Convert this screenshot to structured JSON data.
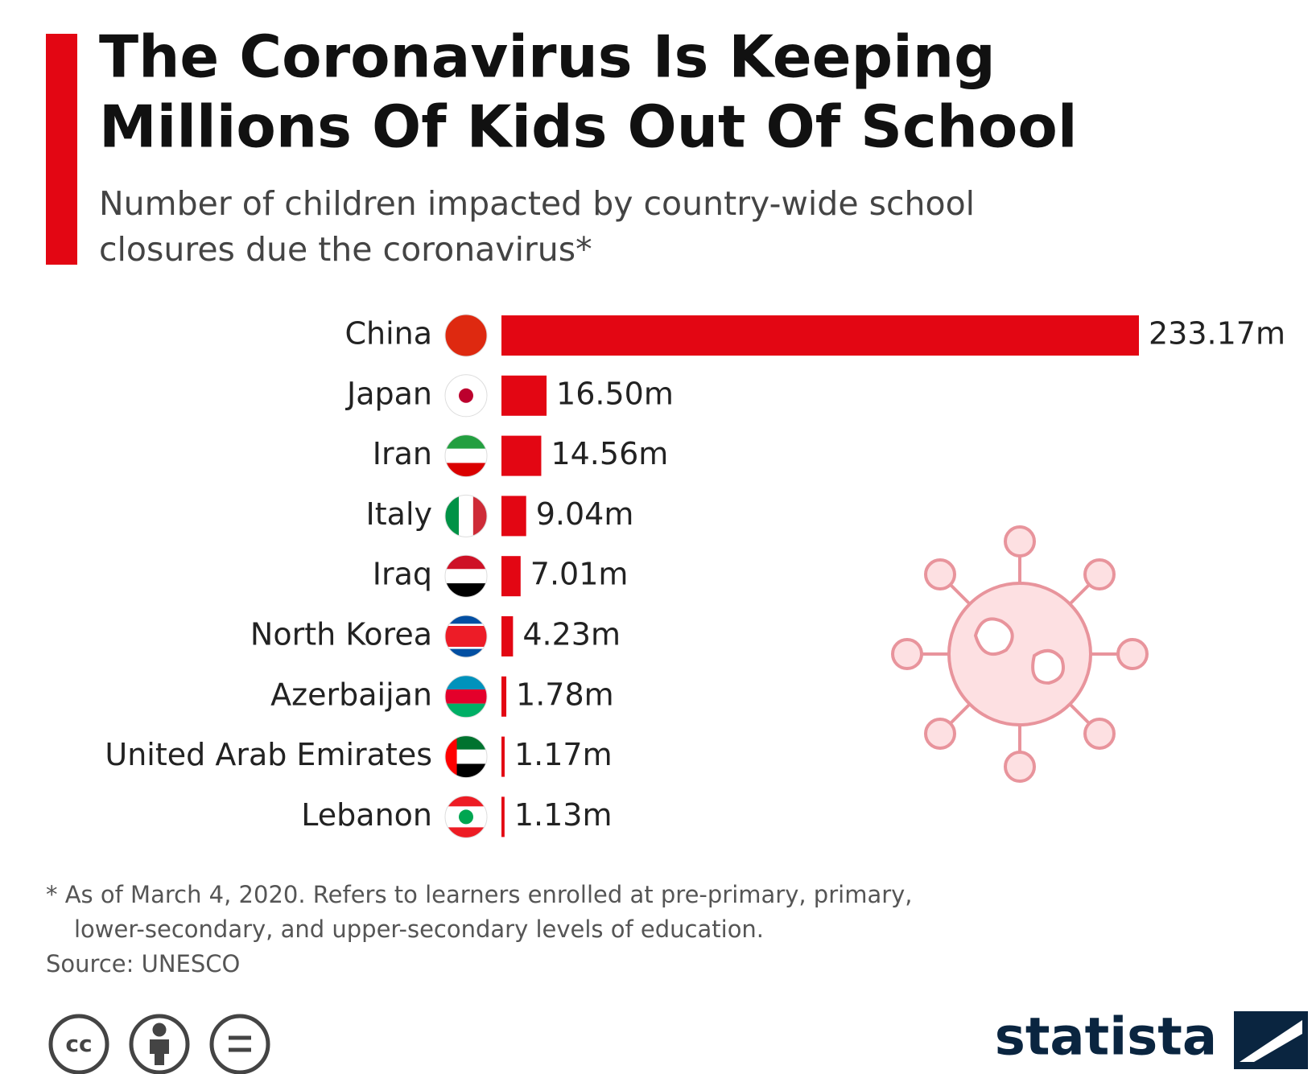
{
  "chart_data": {
    "type": "bar",
    "orientation": "horizontal",
    "title": [
      "The Coronavirus Is Keeping",
      "Millions Of Kids Out Of School"
    ],
    "subtitle": [
      "Number of children impacted by country-wide school",
      "closures due the coronavirus*"
    ],
    "categories": [
      "China",
      "Japan",
      "Iran",
      "Italy",
      "Iraq",
      "North Korea",
      "Azerbaijan",
      "United Arab Emirates",
      "Lebanon"
    ],
    "values": [
      233.17,
      16.5,
      14.56,
      9.04,
      7.01,
      4.23,
      1.78,
      1.17,
      1.13
    ],
    "value_labels": [
      "233.17m",
      "16.50m",
      "14.56m",
      "9.04m",
      "7.01m",
      "4.23m",
      "1.78m",
      "1.17m",
      "1.13m"
    ],
    "color": "#e30613",
    "note": [
      "* As of March 4, 2020. Refers to learners enrolled at pre-primary, primary,",
      "lower-secondary, and upper-secondary levels of education."
    ],
    "source": "Source: UNESCO",
    "license": "cc",
    "brand": "statista"
  }
}
